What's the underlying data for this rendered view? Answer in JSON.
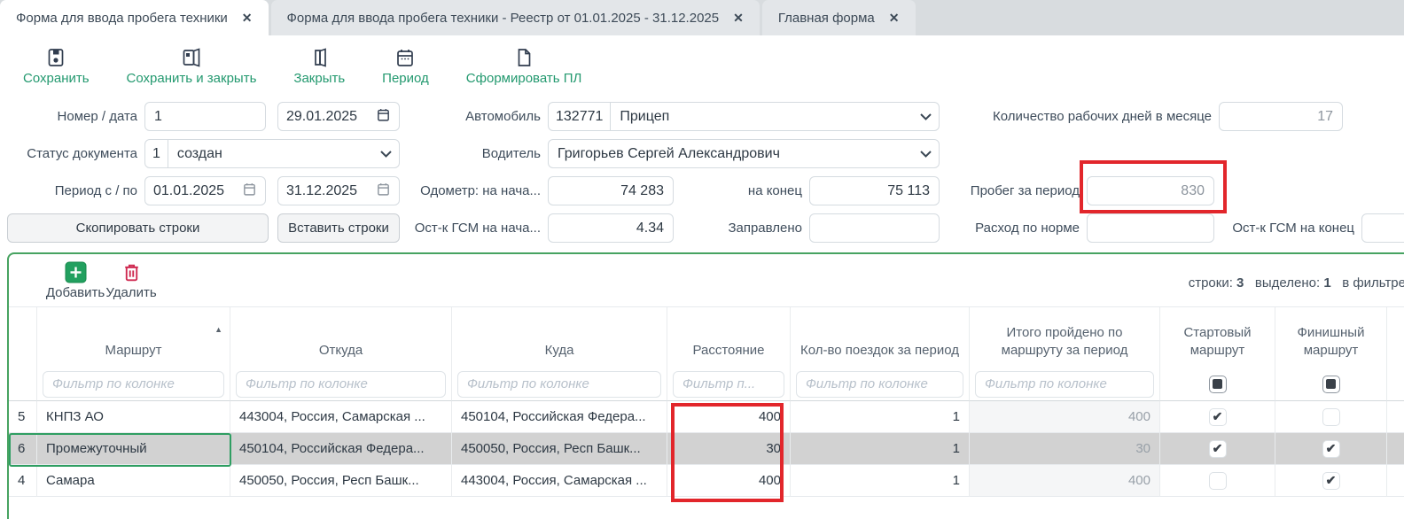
{
  "tabs": [
    {
      "label": "Форма для ввода пробега техники"
    },
    {
      "label": "Форма для ввода пробега техники - Реестр от 01.01.2025 - 31.12.2025"
    },
    {
      "label": "Главная форма"
    }
  ],
  "toolbar": {
    "save_label": "Сохранить",
    "save_close_label": "Сохранить и закрыть",
    "close_label": "Закрыть",
    "period_label": "Период",
    "generate_label": "Сформировать ПЛ"
  },
  "form": {
    "number_date_label": "Номер / дата",
    "number_value": "1",
    "date_value": "29.01.2025",
    "status_label": "Статус документа",
    "status_code": "1",
    "status_value": "создан",
    "period_label": "Период с / по",
    "period_from": "01.01.2025",
    "period_to": "31.12.2025",
    "car_label": "Автомобиль",
    "car_code": "132771",
    "car_value": "Прицеп",
    "driver_label": "Водитель",
    "driver_value": "Григорьев Сергей Александрович",
    "odometer_start_label": "Одометр: на нача...",
    "odometer_start_value": "74 283",
    "odometer_end_label": "на конец",
    "odometer_end_value": "75 113",
    "fuel_start_label": "Ост-к ГСМ на нача...",
    "fuel_start_value": "4.34",
    "refueled_label": "Заправлено",
    "refueled_value": "",
    "workdays_label": "Количество рабочих дней в месяце",
    "workdays_value": "17",
    "mileage_label": "Пробег за период",
    "mileage_value": "830",
    "norm_label": "Расход по норме",
    "norm_value": "",
    "fuel_end_label": "Ост-к ГСМ на конец",
    "fuel_end_value": "",
    "copy_rows_label": "Скопировать строки",
    "paste_rows_label": "Вставить строки"
  },
  "grid": {
    "add_label": "Добавить",
    "delete_label": "Удалить",
    "rows_label": "строки:",
    "rows_count": "3",
    "selected_label": "выделено:",
    "selected_count": "1",
    "filter_info_label": "в фильтре",
    "filter_placeholder": "Фильтр по колонке",
    "filter_placeholder_short": "Фильтр п...",
    "columns": [
      "Маршрут",
      "Откуда",
      "Куда",
      "Расстояние",
      "Кол-во поездок за период",
      "Итого пройдено по маршруту за период",
      "Стартовый маршрут",
      "Финишный маршрут"
    ],
    "rows": [
      {
        "num": "5",
        "route": "КНПЗ АО",
        "from": "443004, Россия, Самарская ...",
        "to": "450104, Российская Федера...",
        "distance": "400",
        "trips": "1",
        "total": "400",
        "start": true,
        "finish": false,
        "selected": false
      },
      {
        "num": "6",
        "route": "Промежуточный",
        "from": "450104, Российская Федера...",
        "to": "450050, Россия, Респ Башк...",
        "distance": "30",
        "trips": "1",
        "total": "30",
        "start": true,
        "finish": true,
        "selected": true
      },
      {
        "num": "4",
        "route": "Самара",
        "from": "450050, Россия, Респ Башк...",
        "to": "443004, Россия, Самарская ...",
        "distance": "400",
        "trips": "1",
        "total": "400",
        "start": false,
        "finish": true,
        "selected": false
      }
    ]
  },
  "colors": {
    "toolbar_accent_green": "#23996f",
    "panel_border_green": "#47a361",
    "selected_row_gray": "#d2d2d2",
    "annotation_red": "#e2262b",
    "add_button_green": "#22a05f",
    "delete_icon_red": "#cf2950"
  }
}
